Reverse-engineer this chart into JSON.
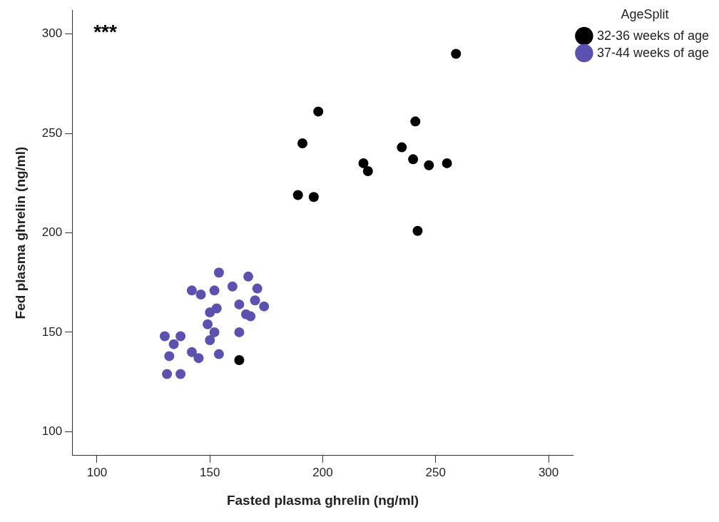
{
  "chart_data": {
    "type": "scatter",
    "xlabel": "Fasted plasma ghrelin (ng/ml)",
    "ylabel": "Fed plasma ghrelin (ng/ml)",
    "legend_title": "AgeSplit",
    "legend": "top right",
    "grid": false,
    "marker": "circle",
    "xlim": [
      89,
      311
    ],
    "ylim": [
      88,
      312
    ],
    "xticks": [
      100,
      150,
      200,
      250,
      300
    ],
    "yticks": [
      100,
      150,
      200,
      250,
      300
    ],
    "annotations": [
      "***"
    ],
    "series": [
      {
        "name": "32-36 weeks of age",
        "color": "#000000",
        "x": [
          259,
          198,
          241,
          191,
          235,
          240,
          247,
          255,
          218,
          220,
          189,
          196,
          242,
          163
        ],
        "values": [
          290,
          261,
          256,
          245,
          243,
          237,
          234,
          235,
          235,
          231,
          219,
          218,
          201,
          136
        ]
      },
      {
        "name": "37-44 weeks of age",
        "color": "#5b52b0",
        "x": [
          154,
          167,
          142,
          146,
          152,
          160,
          171,
          170,
          174,
          163,
          153,
          150,
          166,
          168,
          149,
          152,
          150,
          163,
          130,
          137,
          134,
          132,
          142,
          145,
          154,
          131,
          137
        ],
        "values": [
          180,
          178,
          171,
          169,
          171,
          173,
          172,
          166,
          163,
          164,
          162,
          160,
          159,
          158,
          154,
          150,
          146,
          150,
          148,
          148,
          144,
          138,
          140,
          137,
          139,
          129,
          129
        ]
      }
    ]
  }
}
